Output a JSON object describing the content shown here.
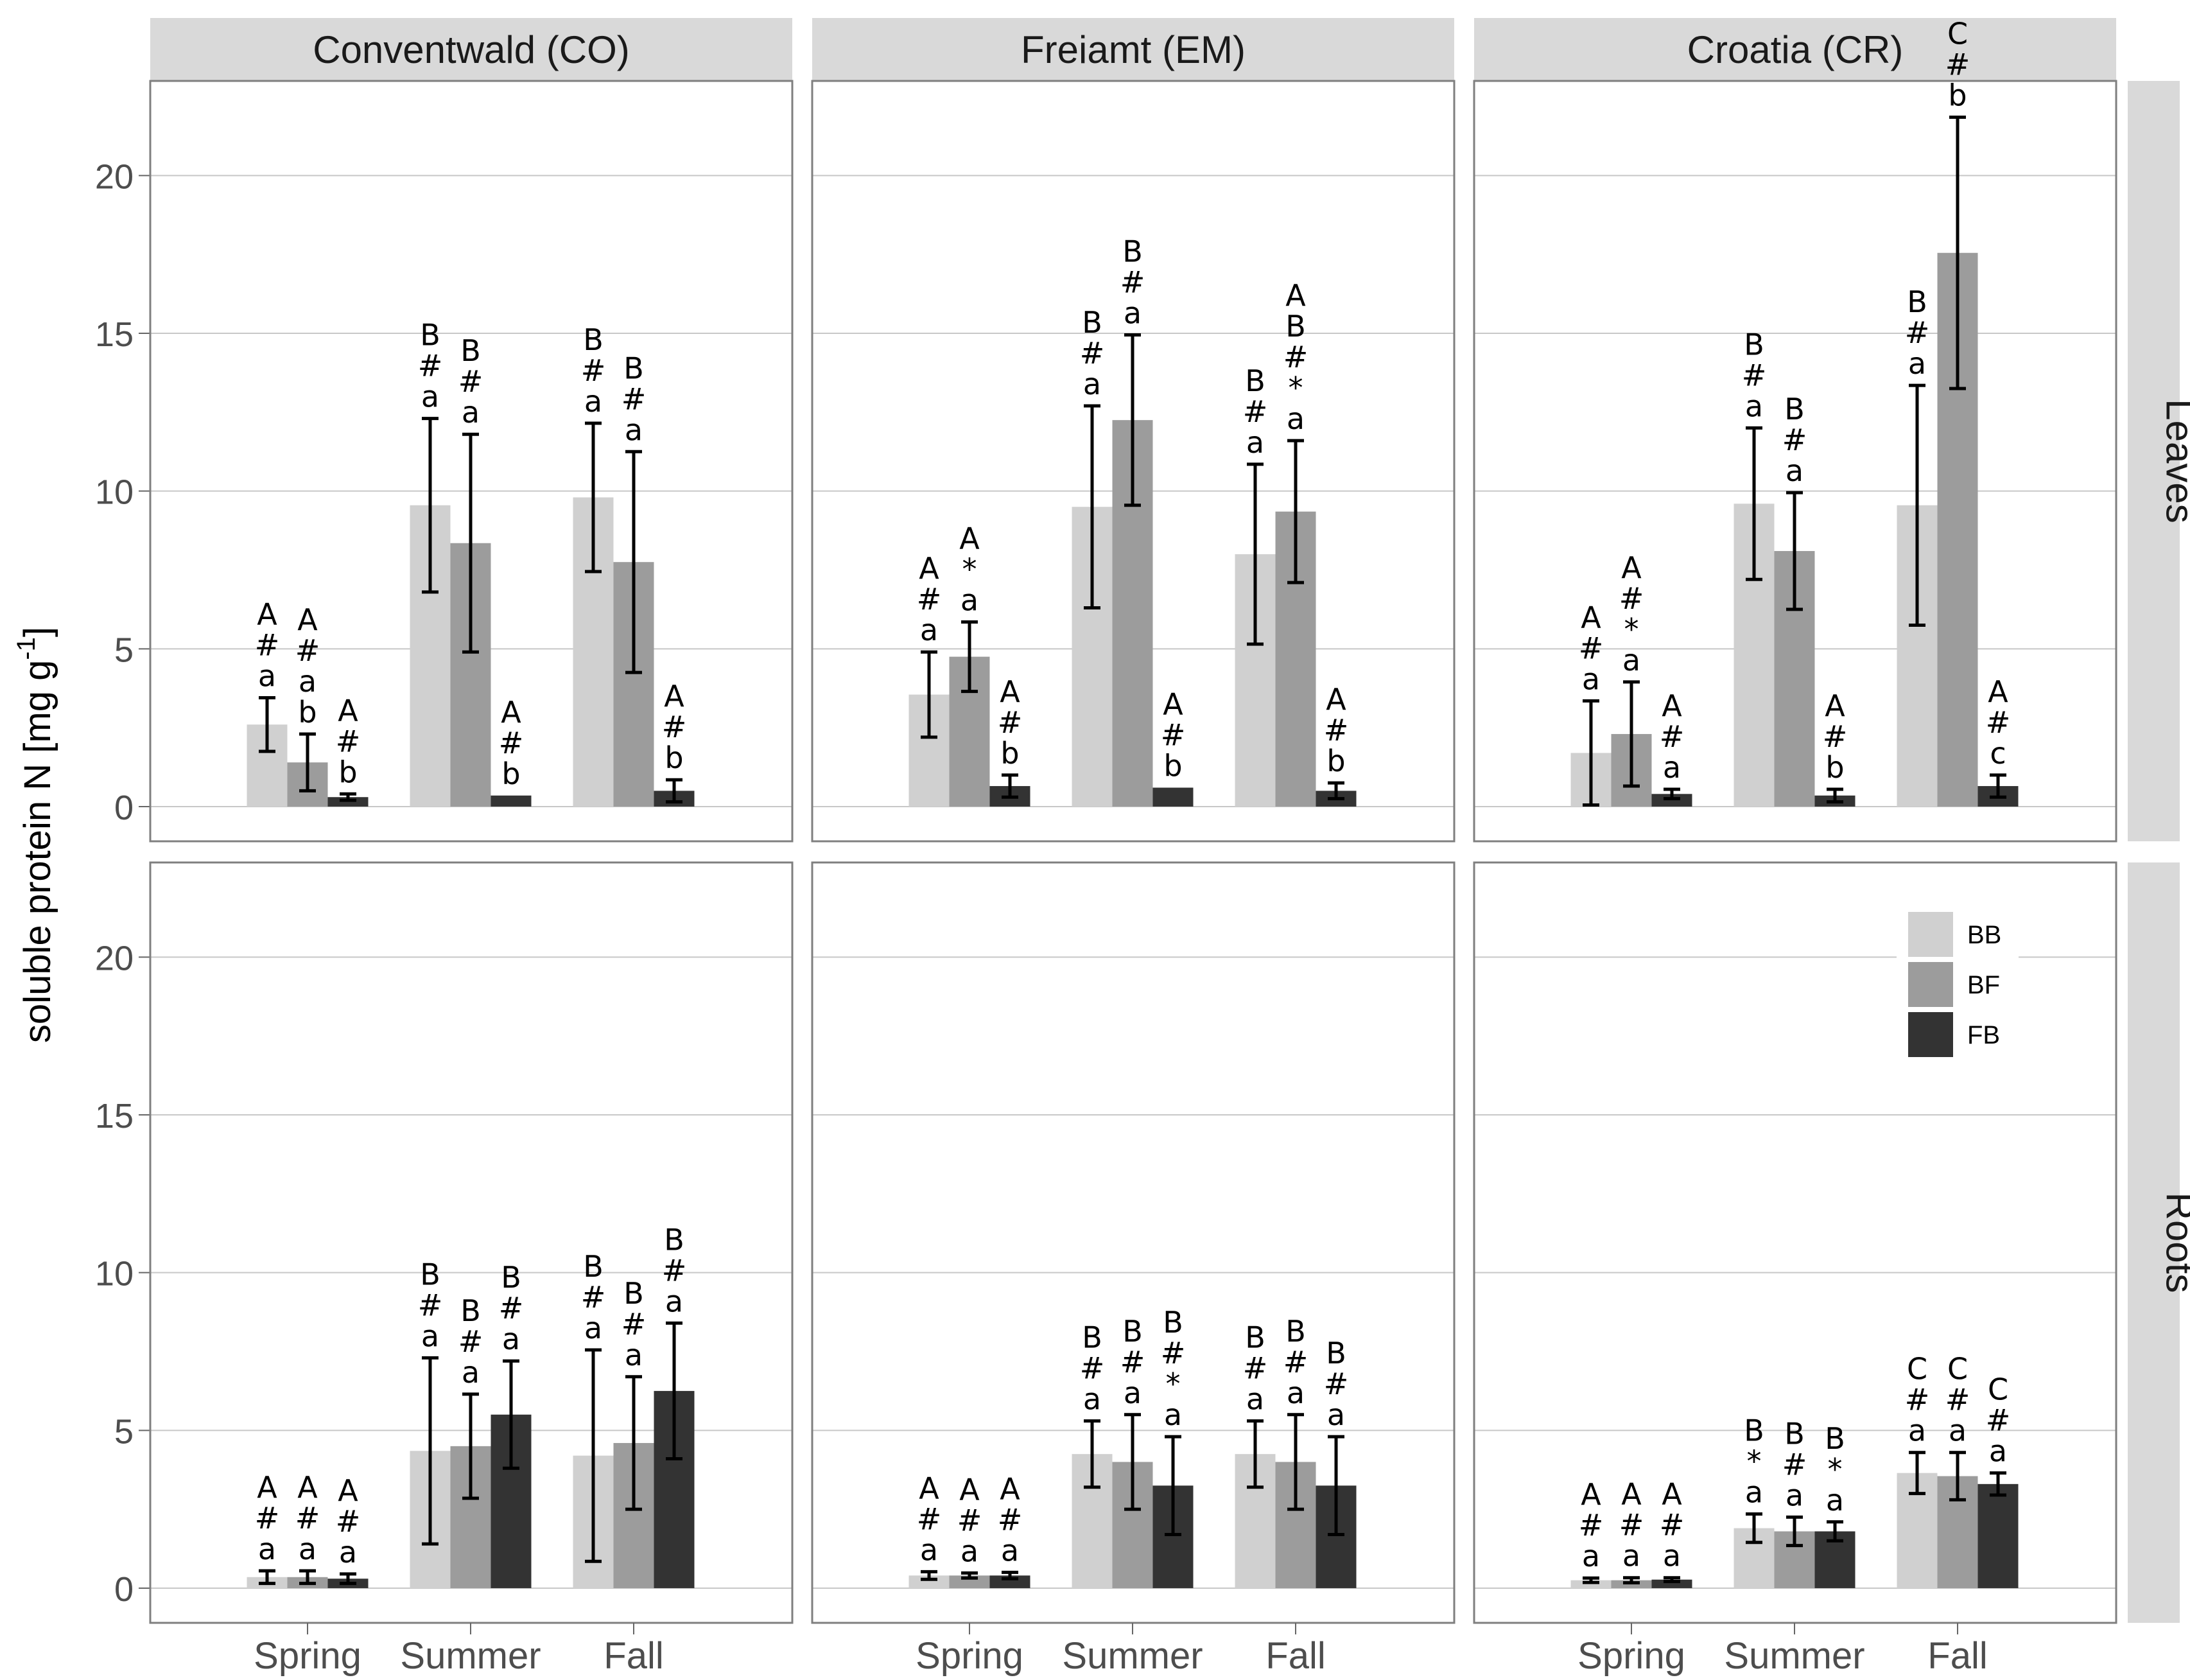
{
  "chart_data": {
    "type": "bar",
    "ylabel": "soluble protein N [mg g",
    "ylabel_unit_sup": "-1",
    "ylabel_unit_end": "]",
    "ylim": [
      -1.1,
      23.0
    ],
    "yticks": [
      "0",
      "5",
      "10",
      "15",
      "20"
    ],
    "ytick_values": [
      0,
      5,
      10,
      15,
      20
    ],
    "categories": [
      "Spring",
      "Summer",
      "Fall"
    ],
    "facet_columns": [
      "Conventwald (CO)",
      "Freiamt (EM)",
      "Croatia (CR)"
    ],
    "facet_rows": [
      "Leaves",
      "Roots"
    ],
    "legend": [
      {
        "label": "BB",
        "color": "#d0d0d0"
      },
      {
        "label": "BF",
        "color": "#9c9c9c"
      },
      {
        "label": "FB",
        "color": "#333333"
      }
    ],
    "legend_position": "inside bottom-right panel, top-right",
    "panels": [
      {
        "row": "Leaves",
        "col": "Conventwald (CO)",
        "groups": [
          {
            "category": "Spring",
            "bars": [
              {
                "series": "BB",
                "value": 2.6,
                "err": 0.85,
                "label": [
                  "A",
                  "#",
                  "a"
                ]
              },
              {
                "series": "BF",
                "value": 1.4,
                "err": 0.9,
                "label": [
                  "A",
                  "#",
                  "a",
                  "b"
                ]
              },
              {
                "series": "FB",
                "value": 0.3,
                "err": 0.1,
                "label": [
                  "A",
                  "#",
                  "b"
                ]
              }
            ]
          },
          {
            "category": "Summer",
            "bars": [
              {
                "series": "BB",
                "value": 9.55,
                "err": 2.75,
                "label": [
                  "B",
                  "#",
                  "a"
                ]
              },
              {
                "series": "BF",
                "value": 8.35,
                "err": 3.45,
                "label": [
                  "B",
                  "#",
                  "a"
                ]
              },
              {
                "series": "FB",
                "value": 0.35,
                "err": 0,
                "label": [
                  "A",
                  "#",
                  "b"
                ]
              }
            ]
          },
          {
            "category": "Fall",
            "bars": [
              {
                "series": "BB",
                "value": 9.8,
                "err": 2.35,
                "label": [
                  "B",
                  "#",
                  "a"
                ]
              },
              {
                "series": "BF",
                "value": 7.75,
                "err": 3.5,
                "label": [
                  "B",
                  "#",
                  "a"
                ]
              },
              {
                "series": "FB",
                "value": 0.5,
                "err": 0.35,
                "label": [
                  "A",
                  "#",
                  "b"
                ]
              }
            ]
          }
        ]
      },
      {
        "row": "Leaves",
        "col": "Freiamt (EM)",
        "groups": [
          {
            "category": "Spring",
            "bars": [
              {
                "series": "BB",
                "value": 3.55,
                "err": 1.35,
                "label": [
                  "A",
                  "#",
                  "a"
                ]
              },
              {
                "series": "BF",
                "value": 4.75,
                "err": 1.1,
                "label": [
                  "A",
                  "*",
                  "a"
                ]
              },
              {
                "series": "FB",
                "value": 0.65,
                "err": 0.35,
                "label": [
                  "A",
                  "#",
                  "b"
                ]
              }
            ]
          },
          {
            "category": "Summer",
            "bars": [
              {
                "series": "BB",
                "value": 9.5,
                "err": 3.2,
                "label": [
                  "B",
                  "#",
                  "a"
                ]
              },
              {
                "series": "BF",
                "value": 12.25,
                "err": 2.7,
                "label": [
                  "B",
                  "#",
                  "a"
                ]
              },
              {
                "series": "FB",
                "value": 0.6,
                "err": 0,
                "label": [
                  "A",
                  "#",
                  "b"
                ]
              }
            ]
          },
          {
            "category": "Fall",
            "bars": [
              {
                "series": "BB",
                "value": 8.0,
                "err": 2.85,
                "label": [
                  "B",
                  "#",
                  "a"
                ]
              },
              {
                "series": "BF",
                "value": 9.35,
                "err": 2.25,
                "label": [
                  "A",
                  "B",
                  "#",
                  "*",
                  "a"
                ]
              },
              {
                "series": "FB",
                "value": 0.5,
                "err": 0.25,
                "label": [
                  "A",
                  "#",
                  "b"
                ]
              }
            ]
          }
        ]
      },
      {
        "row": "Leaves",
        "col": "Croatia (CR)",
        "groups": [
          {
            "category": "Spring",
            "bars": [
              {
                "series": "BB",
                "value": 1.7,
                "err": 1.65,
                "label": [
                  "A",
                  "#",
                  "a"
                ]
              },
              {
                "series": "BF",
                "value": 2.3,
                "err": 1.65,
                "label": [
                  "A",
                  "#",
                  "*",
                  "a"
                ]
              },
              {
                "series": "FB",
                "value": 0.4,
                "err": 0.15,
                "label": [
                  "A",
                  "#",
                  "a"
                ]
              }
            ]
          },
          {
            "category": "Summer",
            "bars": [
              {
                "series": "BB",
                "value": 9.6,
                "err": 2.4,
                "label": [
                  "B",
                  "#",
                  "a"
                ]
              },
              {
                "series": "BF",
                "value": 8.1,
                "err": 1.85,
                "label": [
                  "B",
                  "#",
                  "a"
                ]
              },
              {
                "series": "FB",
                "value": 0.35,
                "err": 0.2,
                "label": [
                  "A",
                  "#",
                  "b"
                ]
              }
            ]
          },
          {
            "category": "Fall",
            "bars": [
              {
                "series": "BB",
                "value": 9.55,
                "err": 3.8,
                "label": [
                  "B",
                  "#",
                  "a"
                ]
              },
              {
                "series": "BF",
                "value": 17.55,
                "err": 4.3,
                "label": [
                  "C",
                  "#",
                  "b"
                ]
              },
              {
                "series": "FB",
                "value": 0.65,
                "err": 0.35,
                "label": [
                  "A",
                  "#",
                  "c"
                ]
              }
            ]
          }
        ]
      },
      {
        "row": "Roots",
        "col": "Conventwald (CO)",
        "groups": [
          {
            "category": "Spring",
            "bars": [
              {
                "series": "BB",
                "value": 0.35,
                "err": 0.2,
                "label": [
                  "A",
                  "#",
                  "a"
                ]
              },
              {
                "series": "BF",
                "value": 0.35,
                "err": 0.2,
                "label": [
                  "A",
                  "#",
                  "a"
                ]
              },
              {
                "series": "FB",
                "value": 0.3,
                "err": 0.15,
                "label": [
                  "A",
                  "#",
                  "a"
                ]
              }
            ]
          },
          {
            "category": "Summer",
            "bars": [
              {
                "series": "BB",
                "value": 4.35,
                "err": 2.95,
                "label": [
                  "B",
                  "#",
                  "a"
                ]
              },
              {
                "series": "BF",
                "value": 4.5,
                "err": 1.65,
                "label": [
                  "B",
                  "#",
                  "a"
                ]
              },
              {
                "series": "FB",
                "value": 5.5,
                "err": 1.7,
                "label": [
                  "B",
                  "#",
                  "a"
                ]
              }
            ]
          },
          {
            "category": "Fall",
            "bars": [
              {
                "series": "BB",
                "value": 4.2,
                "err": 3.35,
                "label": [
                  "B",
                  "#",
                  "a"
                ]
              },
              {
                "series": "BF",
                "value": 4.6,
                "err": 2.1,
                "label": [
                  "B",
                  "#",
                  "a"
                ]
              },
              {
                "series": "FB",
                "value": 6.25,
                "err": 2.15,
                "label": [
                  "B",
                  "#",
                  "a"
                ]
              }
            ]
          }
        ]
      },
      {
        "row": "Roots",
        "col": "Freiamt (EM)",
        "groups": [
          {
            "category": "Spring",
            "bars": [
              {
                "series": "BB",
                "value": 0.4,
                "err": 0.12,
                "label": [
                  "A",
                  "#",
                  "a"
                ]
              },
              {
                "series": "BF",
                "value": 0.4,
                "err": 0.08,
                "label": [
                  "A",
                  "#",
                  "a"
                ]
              },
              {
                "series": "FB",
                "value": 0.4,
                "err": 0.1,
                "label": [
                  "A",
                  "#",
                  "a"
                ]
              }
            ]
          },
          {
            "category": "Summer",
            "bars": [
              {
                "series": "BB",
                "value": 4.25,
                "err": 1.05,
                "label": [
                  "B",
                  "#",
                  "a"
                ]
              },
              {
                "series": "BF",
                "value": 4.0,
                "err": 1.5,
                "label": [
                  "B",
                  "#",
                  "a"
                ]
              },
              {
                "series": "FB",
                "value": 3.25,
                "err": 1.55,
                "label": [
                  "B",
                  "#",
                  "*",
                  "a"
                ]
              }
            ]
          },
          {
            "category": "Fall",
            "bars": [
              {
                "series": "BB",
                "value": 4.25,
                "err": 1.05,
                "label": [
                  "B",
                  "#",
                  "a"
                ]
              },
              {
                "series": "BF",
                "value": 4.0,
                "err": 1.5,
                "label": [
                  "B",
                  "#",
                  "a"
                ]
              },
              {
                "series": "FB",
                "value": 3.25,
                "err": 1.55,
                "label": [
                  "B",
                  "#",
                  "a"
                ]
              }
            ]
          }
        ]
      },
      {
        "row": "Roots",
        "col": "Croatia (CR)",
        "groups": [
          {
            "category": "Spring",
            "bars": [
              {
                "series": "BB",
                "value": 0.25,
                "err": 0.07,
                "label": [
                  "A",
                  "#",
                  "a"
                ]
              },
              {
                "series": "BF",
                "value": 0.25,
                "err": 0.08,
                "label": [
                  "A",
                  "#",
                  "a"
                ]
              },
              {
                "series": "FB",
                "value": 0.27,
                "err": 0.06,
                "label": [
                  "A",
                  "#",
                  "a"
                ]
              }
            ]
          },
          {
            "category": "Summer",
            "bars": [
              {
                "series": "BB",
                "value": 1.9,
                "err": 0.45,
                "label": [
                  "B",
                  "*",
                  "a"
                ]
              },
              {
                "series": "BF",
                "value": 1.8,
                "err": 0.45,
                "label": [
                  "B",
                  "#",
                  "a"
                ]
              },
              {
                "series": "FB",
                "value": 1.8,
                "err": 0.3,
                "label": [
                  "B",
                  "*",
                  "a"
                ]
              }
            ]
          },
          {
            "category": "Fall",
            "bars": [
              {
                "series": "BB",
                "value": 3.65,
                "err": 0.65,
                "label": [
                  "C",
                  "#",
                  "a"
                ]
              },
              {
                "series": "BF",
                "value": 3.55,
                "err": 0.75,
                "label": [
                  "C",
                  "#",
                  "a"
                ]
              },
              {
                "series": "FB",
                "value": 3.3,
                "err": 0.35,
                "label": [
                  "C",
                  "#",
                  "a"
                ]
              }
            ]
          }
        ]
      }
    ]
  }
}
